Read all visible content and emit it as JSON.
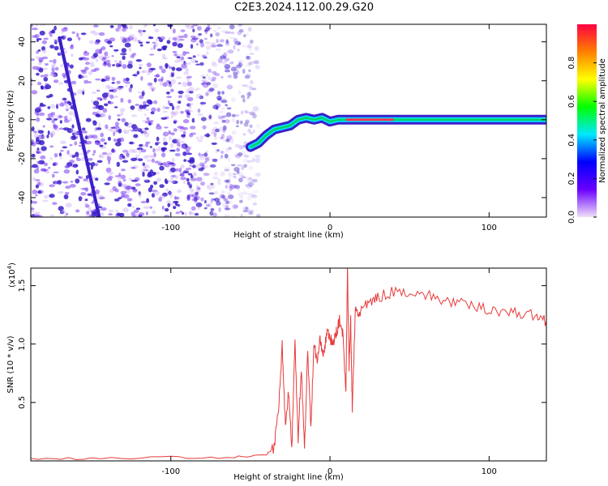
{
  "title": "C2E3.2024.112.00.29.G20",
  "colors": {
    "snr_line": "#e8393a",
    "track_dark": "#3a1fc9",
    "speckle": "#7a3df0",
    "stable_line": "#00d060"
  },
  "chart_data": [
    {
      "type": "heatmap",
      "xlabel": "Height of straight line (km)",
      "ylabel": "Frequency (Hz)",
      "xlim": [
        -188,
        136
      ],
      "ylim": [
        -50,
        49
      ],
      "xticks": [
        -100,
        0,
        100
      ],
      "xtick_labels": [
        "-100",
        "0",
        "100"
      ],
      "yticks": [
        -40,
        -20,
        0,
        20,
        40
      ],
      "ytick_labels": [
        "-40",
        "-20",
        "0",
        "20",
        "40"
      ],
      "colorbar": {
        "label": "Normalized spectral amplitude",
        "range": [
          0,
          1
        ],
        "ticks": [
          0,
          0.2,
          0.4,
          0.6,
          0.8
        ],
        "tick_labels": [
          "0.0",
          "0.2",
          "0.4",
          "0.6",
          "0.8"
        ],
        "colormap": [
          "#f0e0f8",
          "#6a00ff",
          "#0000ff",
          "#00e8ff",
          "#00ff00",
          "#ffff00",
          "#ff8000",
          "#ff0040"
        ]
      },
      "diagonal_track": {
        "x": [
          -170,
          -145
        ],
        "y": [
          42,
          -50
        ]
      },
      "frequency_track": {
        "x": [
          -50,
          -45,
          -40,
          -35,
          -30,
          -25,
          -20,
          -15,
          -10,
          -5,
          0,
          5,
          10,
          20,
          40,
          60,
          80,
          100,
          120,
          136
        ],
        "y": [
          -14,
          -12,
          -8,
          -5,
          -4,
          -3,
          0,
          1,
          0,
          1,
          -1,
          0,
          0,
          0,
          0,
          0,
          0,
          0,
          0,
          0
        ]
      }
    },
    {
      "type": "line",
      "xlabel": "Height of straight line (km)",
      "ylabel": "SNR (10 * v/v)",
      "multiplier": "(x10",
      "multiplier_exponent": "4",
      "multiplier_close": ")",
      "xlim": [
        -188,
        136
      ],
      "ylim": [
        0,
        1.65
      ],
      "xticks": [
        -100,
        0,
        100
      ],
      "xtick_labels": [
        "-100",
        "0",
        "100"
      ],
      "yticks": [
        0.5,
        1.0,
        1.5
      ],
      "ytick_labels": [
        "0.5",
        "1.0",
        "1.5"
      ],
      "series": [
        {
          "x": [
            -188,
            -150,
            -100,
            -60,
            -40,
            -35,
            -32,
            -30,
            -28,
            -26,
            -24,
            -22,
            -20,
            -18,
            -16,
            -14,
            -12,
            -10,
            -8,
            -6,
            -4,
            -2,
            0,
            2,
            4,
            6,
            8,
            10,
            11,
            12,
            13,
            14,
            16,
            18,
            20,
            25,
            30,
            40,
            50,
            60,
            70,
            80,
            90,
            100,
            110,
            120,
            130,
            136
          ],
          "y": [
            0.02,
            0.02,
            0.03,
            0.03,
            0.05,
            0.12,
            0.5,
            1.0,
            0.3,
            0.6,
            0.1,
            1.02,
            0.2,
            0.8,
            0.1,
            0.95,
            0.3,
            1.0,
            0.85,
            1.05,
            0.9,
            1.1,
            1.05,
            1.0,
            1.1,
            1.2,
            1.1,
            0.6,
            1.65,
            0.8,
            1.2,
            0.45,
            1.3,
            1.25,
            1.3,
            1.35,
            1.4,
            1.45,
            1.45,
            1.42,
            1.38,
            1.35,
            1.32,
            1.3,
            1.28,
            1.26,
            1.24,
            1.2
          ]
        }
      ]
    }
  ]
}
